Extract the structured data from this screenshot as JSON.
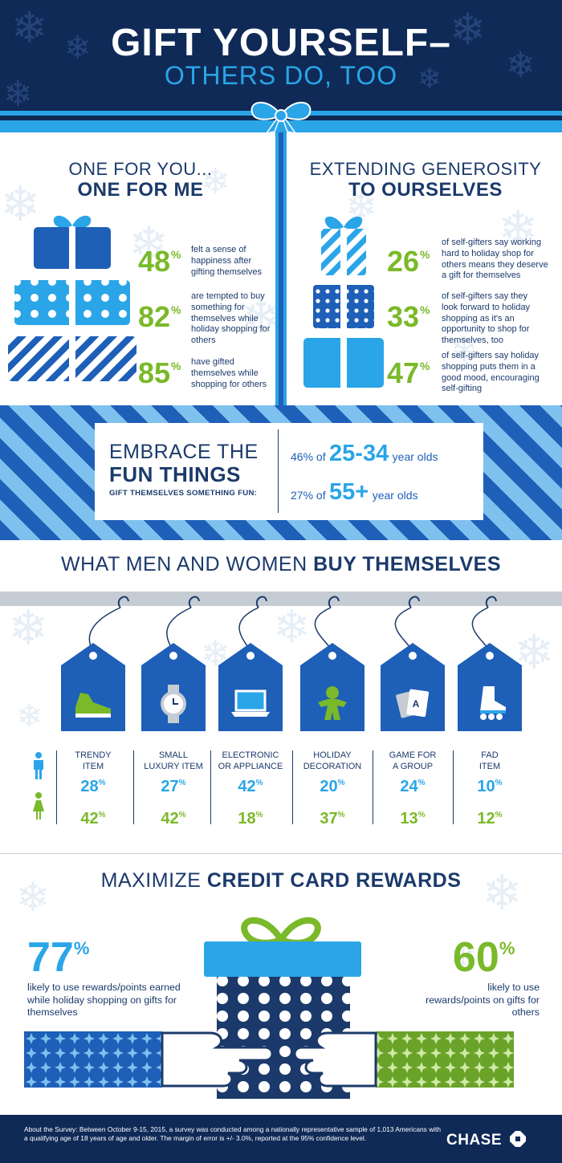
{
  "header": {
    "title": "GIFT YOURSELF–",
    "subtitle": "OTHERS DO, TOO"
  },
  "left_section": {
    "heading_light": "ONE FOR YOU...",
    "heading_bold": "ONE FOR ME",
    "stats": [
      {
        "value": "48",
        "unit": "%",
        "text": "felt a sense of happiness after gifting themselves"
      },
      {
        "value": "82",
        "unit": "%",
        "text": "are tempted to buy something for themselves while holiday shopping for others"
      },
      {
        "value": "85",
        "unit": "%",
        "text": "have gifted themselves while shopping for others"
      }
    ]
  },
  "right_section": {
    "heading_light": "EXTENDING GENEROSITY",
    "heading_bold": "TO OURSELVES",
    "stats": [
      {
        "value": "26",
        "unit": "%",
        "text": "of self-gifters say working hard to holiday shop for others means they deserve a gift for themselves"
      },
      {
        "value": "33",
        "unit": "%",
        "text": "of self-gifters say they look forward to holiday shopping as it's an opportunity to shop for themselves, too"
      },
      {
        "value": "47",
        "unit": "%",
        "text": "of self-gifters say holiday shopping puts them in a good mood, encouraging self-gifting"
      }
    ]
  },
  "fun": {
    "heading_light": "EMBRACE THE",
    "heading_bold": "FUN THINGS",
    "sub": "GIFT THEMSELVES SOMETHING FUN:",
    "rows": [
      {
        "prefix": "46% of",
        "age": "25-34",
        "suffix": "year olds"
      },
      {
        "prefix": "27% of",
        "age": "55+",
        "suffix": "year olds"
      }
    ]
  },
  "buy": {
    "heading_light": "WHAT MEN AND WOMEN ",
    "heading_bold": "BUY THEMSELVES",
    "unit": "%",
    "categories": [
      {
        "label1": "TRENDY",
        "label2": "ITEM",
        "men": "28",
        "women": "42",
        "icon": "sneaker-icon"
      },
      {
        "label1": "SMALL",
        "label2": "LUXURY ITEM",
        "men": "27",
        "women": "42",
        "icon": "watch-icon"
      },
      {
        "label1": "ELECTRONIC",
        "label2": "OR APPLIANCE",
        "men": "42",
        "women": "18",
        "icon": "laptop-icon"
      },
      {
        "label1": "HOLIDAY",
        "label2": "DECORATION",
        "men": "20",
        "women": "37",
        "icon": "gingerbread-icon"
      },
      {
        "label1": "GAME FOR",
        "label2": "A GROUP",
        "men": "24",
        "women": "13",
        "icon": "playing-cards-icon"
      },
      {
        "label1": "FAD",
        "label2": "ITEM",
        "men": "10",
        "women": "12",
        "icon": "inline-skate-icon"
      }
    ]
  },
  "rewards": {
    "heading_light": "MAXIMIZE ",
    "heading_bold": "CREDIT CARD REWARDS",
    "left": {
      "value": "77",
      "unit": "%",
      "text": "likely to use rewards/points earned while holiday shopping on gifts for themselves"
    },
    "right": {
      "value": "60",
      "unit": "%",
      "text": "likely to use rewards/points on gifts for others"
    }
  },
  "footer": {
    "text": "About the Survey:  Between October 9-15, 2015, a survey was conducted among a nationally representative sample of 1,013 Americans with a qualifying age of 18 years of age and older. The margin of error is +/- 3.0%, reported at the 95% confidence level.",
    "logo": "CHASE"
  },
  "colors": {
    "navy": "#0f2a57",
    "blue": "#1e5fb8",
    "sky": "#2aa5e8",
    "green": "#7ab929",
    "text": "#1b3a6b"
  }
}
